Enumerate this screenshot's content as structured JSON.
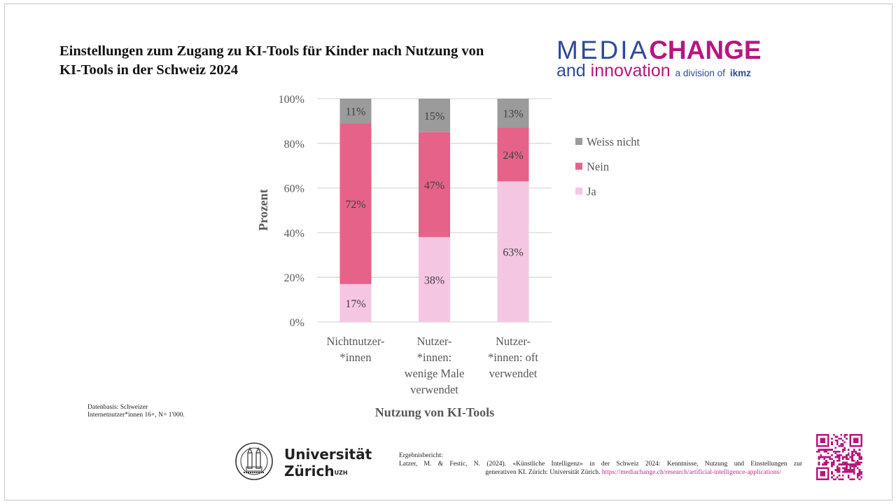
{
  "title": "Einstellungen zum Zugang zu KI-Tools für Kinder nach Nutzung von KI-Tools in der Schweiz 2024",
  "logo": {
    "media": "MEDIA",
    "change": "CHANGE",
    "and": "and",
    "innovation": "innovation",
    "division": "a division of",
    "ikmz": "ikmz"
  },
  "colors": {
    "weiss_nicht": "#9b9b9b",
    "nein": "#e66289",
    "ja": "#f5c6e2",
    "brand_blue": "#2e4a99",
    "brand_magenta": "#b5177f"
  },
  "chart_data": {
    "type": "bar",
    "stacked": true,
    "title": "Einstellungen zum Zugang zu KI-Tools für Kinder nach Nutzung von KI-Tools in der Schweiz 2024",
    "xlabel": "Nutzung von KI-Tools",
    "ylabel": "Prozent",
    "ylim": [
      0,
      100
    ],
    "yticks": [
      "0%",
      "20%",
      "40%",
      "60%",
      "80%",
      "100%"
    ],
    "grid": true,
    "legend_position": "right",
    "categories": [
      [
        "Nichtnutzer-",
        "*innen"
      ],
      [
        "Nutzer-",
        "*innen:",
        "wenige Male",
        "verwendet"
      ],
      [
        "Nutzer-",
        "*innen: oft",
        "verwendet"
      ]
    ],
    "series": [
      {
        "name": "Ja",
        "values": [
          17,
          38,
          63
        ],
        "labels": [
          "17%",
          "38%",
          "63%"
        ]
      },
      {
        "name": "Nein",
        "values": [
          72,
          47,
          24
        ],
        "labels": [
          "72%",
          "47%",
          "24%"
        ]
      },
      {
        "name": "Weiss nicht",
        "values": [
          11,
          15,
          13
        ],
        "labels": [
          "11%",
          "15%",
          "13%"
        ]
      }
    ],
    "legend": [
      "Weiss nicht",
      "Nein",
      "Ja"
    ]
  },
  "source_note": {
    "line1": "Datenbasis: Schweizer",
    "line2": "Internetnutzer*innen 16+, N= 1'000."
  },
  "university": {
    "name_line1": "Universität",
    "name_line2": "Zürich",
    "sup": "UZH"
  },
  "citation": {
    "label": "Ergebnisbericht:",
    "line2": "Latzer, M. & Festic, N. (2024). «Künstliche Intelligenz» in der Schweiz 2024: Kenntnisse, Nutzung und Einstellungen zur",
    "line3": "generativen KI. Zürich: Universität Zürich.",
    "url": "https://mediachange.ch/research/artificial-intelligence-applications/"
  }
}
